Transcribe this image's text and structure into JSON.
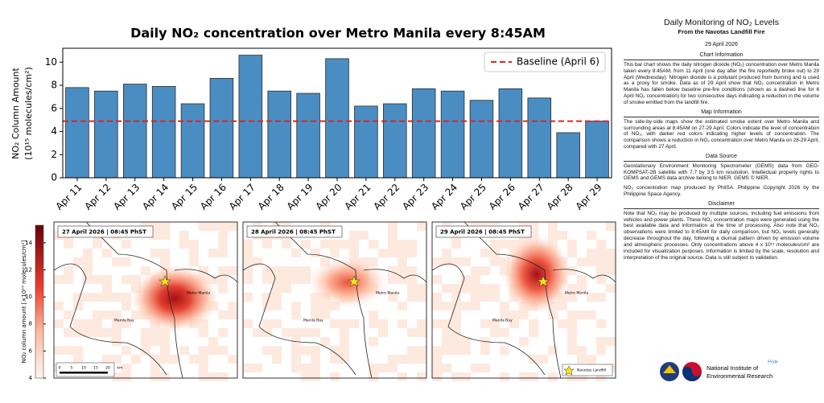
{
  "chart_data": {
    "type": "bar",
    "title": "Daily NO₂ concentration over Metro Manila every 8:45AM",
    "y_label": [
      "NO₂ Column Amount",
      "(10¹⁵ molecules/cm²)"
    ],
    "categories": [
      "Apr 11",
      "Apr 12",
      "Apr 13",
      "Apr 14",
      "Apr 15",
      "Apr 16",
      "Apr 17",
      "Apr 18",
      "Apr 19",
      "Apr 20",
      "Apr 21",
      "Apr 22",
      "Apr 23",
      "Apr 24",
      "Apr 25",
      "Apr 26",
      "Apr 27",
      "Apr 28",
      "Apr 29"
    ],
    "values": [
      7.8,
      7.5,
      8.1,
      7.9,
      6.4,
      8.6,
      10.6,
      7.5,
      7.3,
      10.3,
      6.2,
      6.4,
      7.7,
      7.5,
      6.7,
      7.7,
      6.9,
      3.9,
      4.9
    ],
    "color": "#4a8dc3",
    "baseline": {
      "name": "Baseline (April 6)",
      "value": 4.9,
      "color": "#d62728"
    },
    "legend": "upper right",
    "ylim": [
      0,
      11.2
    ],
    "yticks": [
      0,
      2,
      4,
      6,
      8,
      10
    ],
    "grid": false
  },
  "maps": {
    "panels": [
      "27 April 2026 | 08:45 PhST",
      "28 April 2026 | 08:45 PhST",
      "29 April 2026 | 08:45 PhST"
    ],
    "place_city": "Metro Manila",
    "place_bay": "Manila Bay",
    "marker_label": "Navotas Landfill",
    "scale_labels": [
      "0",
      "5",
      "10",
      "15",
      "20",
      "km"
    ],
    "colorbar": {
      "label": "NO₂ column amount [×10¹⁵ molecules/cm²]",
      "lim": [
        4,
        15.3
      ],
      "ticks": [
        4,
        6,
        8,
        10,
        12,
        14
      ]
    }
  },
  "panel": {
    "title": "Daily Monitoring of NO₂ Levels",
    "subtitle": "From the Navotas Landfill Fire",
    "date": "29 April 2026",
    "sections": [
      {
        "heading": "Chart Information",
        "paragraphs": [
          "This bar chart shows the daily nitrogen dioxide (NO₂) concentration over Metro Manila taken every 8:45AM, from 11 April (one day after the fire reportedly broke out) to 29 April (Wednesday). Nitrogen dioxide is a pollutant produced from burning and is used as a proxy for smoke. Data as of 29 April show that NO₂ concentration in Metro Manila has fallen below baseline pre-fire conditions (shown as a dashed line for 6 April NO₂ concentration) for two consecutive days indicating a reduction in the volume of smoke emitted from the landfill fire."
        ]
      },
      {
        "heading": "Map Information",
        "paragraphs": [
          "The side-by-side maps show the estimated smoke extent over Metro Manila and surrounding areas at 8:45AM on 27-29 April. Colors indicate the level of concentration of NO₂, with darker red colors indicating higher levels of concentration. The comparison shows a reduction in NO₂ concentration over Metro Manila on 28-29 April, compared with 27 April."
        ]
      },
      {
        "heading": "Data Source",
        "paragraphs": [
          "Geostationary Environment Monitoring Spectrometer (GEMS) data from GEO-KOMPSAT-2B satellite with 7.7 by 3.5 km resolution. Intellectual property rights to GEMS and GEMS data archive belong to NIER. GEMS © NIER.",
          "NO₂ concentration map produced by PhilSA. Philippine Copyright 2026 by the Philippine Space Agency."
        ]
      },
      {
        "heading": "Disclaimer",
        "paragraphs": [
          "Note that NO₂ may be produced by multiple sources, including fuel emissions from vehicles and power plants. These NO₂ concentration maps were generated using the best available data and information at the time of processing. Also note that NO₂ observations were limited to 8:45AM for daily comparison, but NO₂ levels generally decrease throughout the day, following a diurnal pattern driven by emission volume and atmospheric processes. Only concentrations above 4 x 10¹⁵ molecules/cm² are included for visualization purposes. Information is limited by the scale, resolution and interpretation of the original source. Data is still subject to validation."
        ]
      }
    ],
    "org": [
      "National Institute of",
      "Environmental Research"
    ],
    "tag": "Pride"
  }
}
